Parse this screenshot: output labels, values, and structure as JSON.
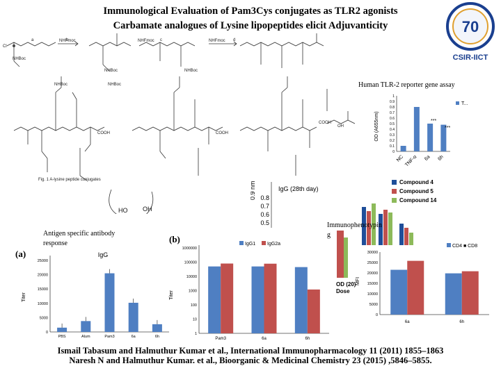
{
  "slide": {
    "title_line1": "Immunological Evaluation of Pam3Cys conjugates as TLR2 agonists",
    "title_line2": "Carbamate analogues of Lysine lipopeptides elicit Adjuvanticity",
    "caption_tlr2": "Human TLR-2 reporter gene assay",
    "caption_antibody_1": "Antigen specific antibody",
    "caption_antibody_2": "response",
    "caption_immuno_1": "Immunophenotypin",
    "caption_immuno_2": "g",
    "panel_a": "(a)",
    "panel_b": "(b)",
    "ref1": "Ismail Tabasum  and  Halmuthur  Kumar et al., International Immunopharmacology 11 (2011) 1855–1863",
    "ref2": "Naresh N and Halmuthur Kumar. et al.,  Bioorganic & Medicinal Chemistry 23 (2015) ,5846–5855."
  },
  "logo": {
    "text": "CSIR-IICT",
    "color": "#1a3f8f"
  },
  "colors": {
    "blue": "#4f7fc2",
    "red": "#c0504d",
    "green": "#8dba5a",
    "dark_blue": "#1f4e99"
  },
  "chemistry": {
    "labels": [
      "NHBoc",
      "NHBoc",
      "NHBoc",
      "NHFmoc",
      "NHFmoc",
      "NHFmoc",
      "NHBoc",
      "NHBoc",
      "NHBoc",
      "COOH",
      "COOH",
      "COOH",
      "HO",
      "OH",
      "OH",
      "Cl",
      "a",
      "b",
      "c",
      "d"
    ],
    "figure_caption": "Fig. 1 A-lysine peptide conjugates"
  },
  "chart_data": [
    {
      "type": "bar",
      "title": "",
      "ylabel": "OD (A655nm)",
      "categories": [
        "NC",
        "TNF-α",
        "6a",
        "6h"
      ],
      "values": [
        0.1,
        0.8,
        0.5,
        0.48
      ],
      "ylim": [
        0,
        1
      ],
      "yticks": [
        "0",
        "0.1",
        "0.2",
        "0.3",
        "0.4",
        "0.5",
        "0.6",
        "0.7",
        "0.8",
        "0.9",
        "1"
      ],
      "legend": "T...",
      "annotations": [
        "***",
        "***"
      ]
    },
    {
      "type": "bar",
      "title": "IgG",
      "ylabel": "Titer",
      "categories": [
        "PBS",
        "Alum",
        "Pam3",
        "6a",
        "6h"
      ],
      "values": [
        1500,
        3800,
        20500,
        10200,
        2700
      ],
      "ylim": [
        0,
        25000
      ],
      "yticks": [
        "0",
        "5000",
        "10000",
        "15000",
        "20000",
        "25000"
      ]
    },
    {
      "type": "bar",
      "title": "",
      "ylabel": "Titer",
      "categories": [
        "Pam3",
        "6a",
        "6h"
      ],
      "series": [
        {
          "name": "IgG1",
          "values": [
            50000,
            50000,
            45000
          ]
        },
        {
          "name": "IgG2a",
          "values": [
            80000,
            78000,
            1200
          ]
        }
      ],
      "scale": "log",
      "ylim": [
        1,
        1000000
      ],
      "yticks": [
        "1",
        "10",
        "100",
        "1000",
        "10000",
        "100000",
        "1000000"
      ]
    },
    {
      "type": "bar",
      "title": "",
      "ylabel": "MFI",
      "categories": [
        "6a",
        "6h"
      ],
      "series": [
        {
          "name": "CD4",
          "values": [
            21500,
            19800
          ]
        },
        {
          "name": "CD8",
          "values": [
            25800,
            20800
          ]
        }
      ],
      "legend": "CD4 ■ CD8",
      "ylim": [
        0,
        30000
      ],
      "yticks": [
        "0",
        "5000",
        "10000",
        "15000",
        "20000",
        "25000",
        "30000"
      ]
    },
    {
      "type": "bar",
      "title": "IgG (28th day)",
      "ylabel": "0.9 nm",
      "yticks": [
        "0.8",
        "0.7",
        "0.6",
        "0.5"
      ],
      "legend_entries": [
        "Compound 4",
        "Compound 5",
        "Compound 14"
      ],
      "xlabel_fragment": "OD (20)",
      "xlabel_fragment2": "Dose"
    }
  ]
}
